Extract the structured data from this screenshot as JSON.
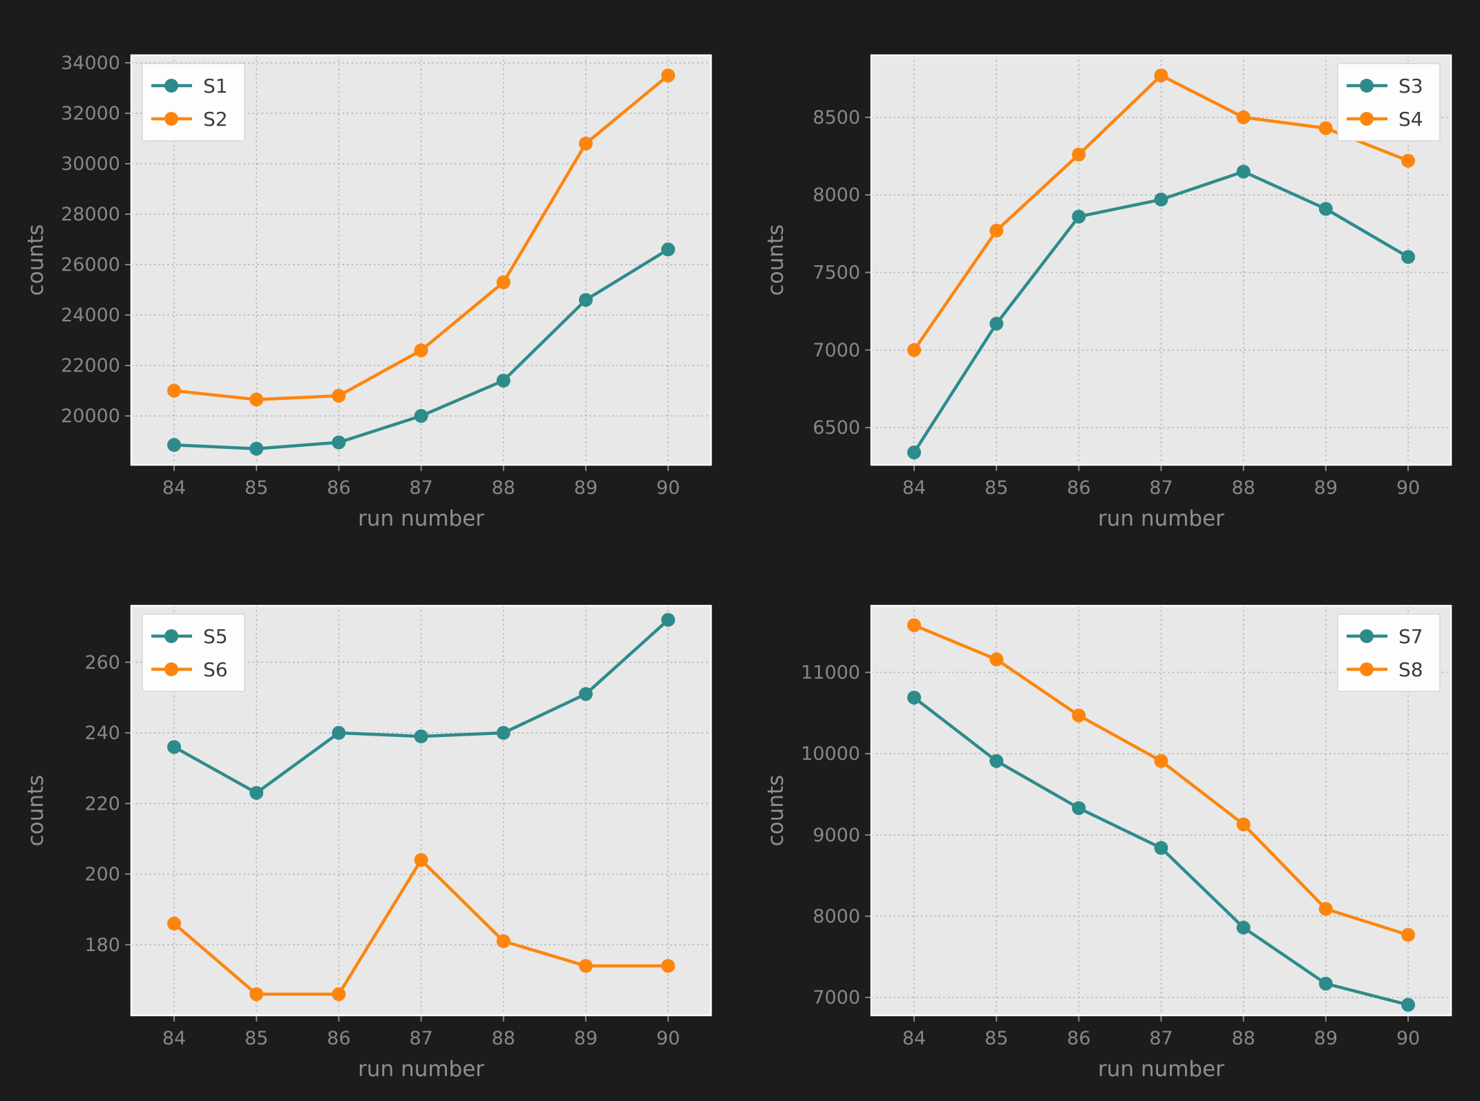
{
  "figure": {
    "background": "#1c1c1c",
    "plot_background": "#e8e8e8",
    "grid_color": "#b5b5b5",
    "spine_color": "#ffffff",
    "tick_label_color": "#878787",
    "axis_label_color": "#8e8e8e",
    "legend_text_color": "#3b3b3b",
    "legend_background": "#fdfdfd",
    "legend_border": "#d6d6d6"
  },
  "palette": {
    "teal": "#2e8b8b",
    "orange": "#fd850e"
  },
  "chart_data": [
    {
      "type": "line",
      "position": "top-left",
      "xlabel": "run number",
      "ylabel": "counts",
      "x": [
        84,
        85,
        86,
        87,
        88,
        89,
        90
      ],
      "xticklabels": [
        "84",
        "85",
        "86",
        "87",
        "88",
        "89",
        "90"
      ],
      "ylim": [
        18060,
        34300
      ],
      "yticks": [
        20000,
        22000,
        24000,
        26000,
        28000,
        30000,
        32000,
        34000
      ],
      "yticklabels": [
        "20000",
        "22000",
        "24000",
        "26000",
        "28000",
        "30000",
        "32000",
        "34000"
      ],
      "grid": true,
      "legend_position": "nw",
      "series": [
        {
          "name": "S1",
          "color": "teal",
          "values": [
            18850,
            18700,
            18950,
            20000,
            21400,
            24600,
            26600
          ]
        },
        {
          "name": "S2",
          "color": "orange",
          "values": [
            21000,
            20650,
            20800,
            22600,
            25300,
            30800,
            33500
          ]
        }
      ]
    },
    {
      "type": "line",
      "position": "top-right",
      "xlabel": "run number",
      "ylabel": "counts",
      "x": [
        84,
        85,
        86,
        87,
        88,
        89,
        90
      ],
      "xticklabels": [
        "84",
        "85",
        "86",
        "87",
        "88",
        "89",
        "90"
      ],
      "ylim": [
        6260,
        8900
      ],
      "yticks": [
        6500,
        7000,
        7500,
        8000,
        8500
      ],
      "yticklabels": [
        "6500",
        "7000",
        "7500",
        "8000",
        "8500"
      ],
      "grid": true,
      "legend_position": "ne",
      "series": [
        {
          "name": "S3",
          "color": "teal",
          "values": [
            6340,
            7170,
            7860,
            7970,
            8150,
            7910,
            7600
          ]
        },
        {
          "name": "S4",
          "color": "orange",
          "values": [
            7000,
            7770,
            8260,
            8770,
            8500,
            8430,
            8220
          ]
        }
      ]
    },
    {
      "type": "line",
      "position": "bottom-left",
      "xlabel": "run number",
      "ylabel": "counts",
      "x": [
        84,
        85,
        86,
        87,
        88,
        89,
        90
      ],
      "xticklabels": [
        "84",
        "85",
        "86",
        "87",
        "88",
        "89",
        "90"
      ],
      "ylim": [
        160,
        276
      ],
      "yticks": [
        180,
        200,
        220,
        240,
        260
      ],
      "yticklabels": [
        "180",
        "200",
        "220",
        "240",
        "260"
      ],
      "grid": true,
      "legend_position": "nw",
      "series": [
        {
          "name": "S5",
          "color": "teal",
          "values": [
            236,
            223,
            240,
            239,
            240,
            251,
            272
          ]
        },
        {
          "name": "S6",
          "color": "orange",
          "values": [
            186,
            166,
            166,
            204,
            181,
            174,
            174
          ]
        }
      ]
    },
    {
      "type": "line",
      "position": "bottom-right",
      "xlabel": "run number",
      "ylabel": "counts",
      "x": [
        84,
        85,
        86,
        87,
        88,
        89,
        90
      ],
      "xticklabels": [
        "84",
        "85",
        "86",
        "87",
        "88",
        "89",
        "90"
      ],
      "ylim": [
        6780,
        11820
      ],
      "yticks": [
        7000,
        8000,
        9000,
        10000,
        11000
      ],
      "yticklabels": [
        "7000",
        "8000",
        "9000",
        "10000",
        "11000"
      ],
      "grid": true,
      "legend_position": "ne",
      "series": [
        {
          "name": "S7",
          "color": "teal",
          "values": [
            10690,
            9910,
            9330,
            8840,
            7860,
            7170,
            6910
          ]
        },
        {
          "name": "S8",
          "color": "orange",
          "values": [
            11580,
            11160,
            10470,
            9910,
            9130,
            8090,
            7770
          ]
        }
      ]
    }
  ]
}
